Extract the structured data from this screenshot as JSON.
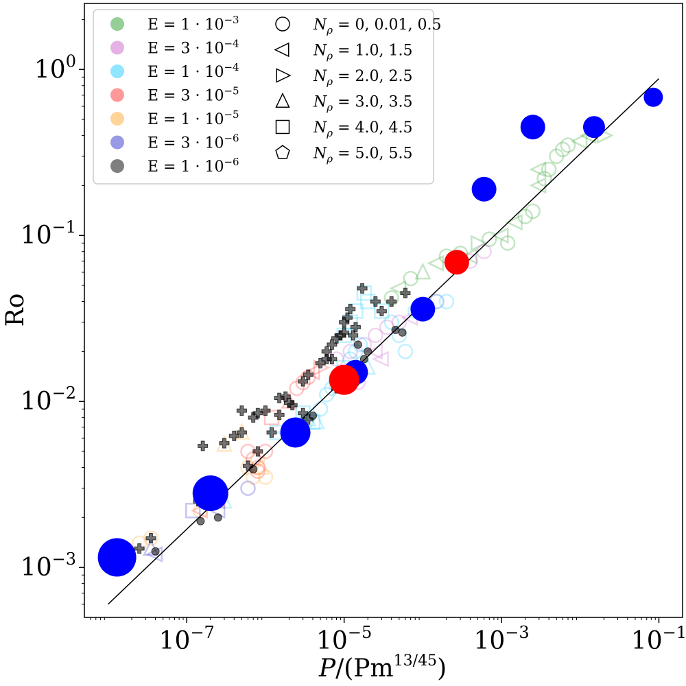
{
  "chart_data": {
    "type": "scatter",
    "xscale": "log",
    "yscale": "log",
    "xlim": [
      5e-09,
      0.2
    ],
    "ylim": [
      0.0005,
      2.5
    ],
    "xlabel": "P/(Pm^{13/45})",
    "ylabel": "Ro",
    "xticks": [
      {
        "value": 1e-07,
        "base": "10",
        "exp": "−7"
      },
      {
        "value": 1e-05,
        "base": "10",
        "exp": "−5"
      },
      {
        "value": 0.001,
        "base": "10",
        "exp": "−3"
      },
      {
        "value": 0.1,
        "base": "10",
        "exp": "−1"
      }
    ],
    "yticks": [
      {
        "value": 0.001,
        "base": "10",
        "exp": "−3"
      },
      {
        "value": 0.01,
        "base": "10",
        "exp": "−2"
      },
      {
        "value": 0.1,
        "base": "10",
        "exp": "−1"
      },
      {
        "value": 1,
        "base": "10",
        "exp": "0"
      }
    ],
    "colors": {
      "e1e3": "#2ca02c",
      "e3e4": "#cc66cc",
      "e1e4": "#22ccff",
      "e3e5": "#ff3333",
      "e1e5": "#ffaa33",
      "e3e6": "#3333cc",
      "e1e6": "#000000",
      "highlight_blue": "#0000ff",
      "highlight_red": "#ff0000",
      "fit_line": "#000000"
    },
    "legend": {
      "placement": "upper-left",
      "color_entries": [
        {
          "label": "E = 1 · 10",
          "exp": "−3",
          "color": "#2ca02c"
        },
        {
          "label": "E = 3 · 10",
          "exp": "−4",
          "color": "#cc66cc"
        },
        {
          "label": "E = 1 · 10",
          "exp": "−4",
          "color": "#22ccff"
        },
        {
          "label": "E = 3 · 10",
          "exp": "−5",
          "color": "#ff3333"
        },
        {
          "label": "E = 1 · 10",
          "exp": "−5",
          "color": "#ffaa33"
        },
        {
          "label": "E = 3 · 10",
          "exp": "−6",
          "color": "#3333cc"
        },
        {
          "label": "E = 1 · 10",
          "exp": "−6",
          "color": "#000000"
        }
      ],
      "marker_entries": [
        {
          "marker": "circle",
          "label": "= 0, 0.01, 0.5"
        },
        {
          "marker": "triangle-left",
          "label": "= 1.0, 1.5"
        },
        {
          "marker": "triangle-right",
          "label": "= 2.0, 2.5"
        },
        {
          "marker": "triangle-up",
          "label": "= 3.0, 3.5"
        },
        {
          "marker": "square",
          "label": "= 4.0, 4.5"
        },
        {
          "marker": "pentagon",
          "label": "= 5.0, 5.5"
        }
      ]
    },
    "fit_line": {
      "x": [
        1e-08,
        0.1
      ],
      "y": [
        0.0006,
        0.88
      ]
    },
    "series": [
      {
        "name": "E=1e-3 (green hollow)",
        "color": "#2ca02c",
        "points": [
          [
            4e-05,
            0.042,
            "o"
          ],
          [
            5e-05,
            0.048,
            "<"
          ],
          [
            7e-05,
            0.055,
            "o"
          ],
          [
            0.0001,
            0.06,
            "^"
          ],
          [
            0.00015,
            0.068,
            "<"
          ],
          [
            0.0002,
            0.075,
            "o"
          ],
          [
            0.0003,
            0.078,
            "o"
          ],
          [
            0.0005,
            0.09,
            ">"
          ],
          [
            0.0007,
            0.095,
            "o"
          ],
          [
            0.001,
            0.1,
            "<"
          ],
          [
            0.0015,
            0.12,
            "<"
          ],
          [
            0.002,
            0.13,
            "o"
          ],
          [
            0.0025,
            0.14,
            "o"
          ],
          [
            0.003,
            0.2,
            "<"
          ],
          [
            0.0035,
            0.22,
            "o"
          ],
          [
            0.004,
            0.25,
            "o"
          ],
          [
            0.005,
            0.3,
            "o"
          ],
          [
            0.006,
            0.33,
            "o"
          ],
          [
            0.007,
            0.35,
            "o"
          ],
          [
            0.01,
            0.37,
            "<"
          ],
          [
            0.013,
            0.4,
            "<"
          ],
          [
            0.02,
            0.4,
            ">"
          ],
          [
            0.003,
            0.25,
            "<"
          ],
          [
            0.0012,
            0.09,
            "o"
          ],
          [
            0.0004,
            0.075,
            "<"
          ]
        ]
      },
      {
        "name": "E=3e-4 (violet hollow)",
        "color": "#cc66cc",
        "points": [
          [
            8e-06,
            0.018,
            "o"
          ],
          [
            1.2e-05,
            0.02,
            "o"
          ],
          [
            1.8e-05,
            0.022,
            "o"
          ],
          [
            2.5e-05,
            0.025,
            "o"
          ],
          [
            3.5e-05,
            0.028,
            "o"
          ],
          [
            5e-05,
            0.03,
            "o"
          ],
          [
            7e-05,
            0.032,
            "<"
          ],
          [
            0.0001,
            0.035,
            "<"
          ],
          [
            0.00015,
            0.04,
            "o"
          ],
          [
            2.5e-05,
            0.02,
            "<"
          ],
          [
            0.0006,
            0.08,
            "o"
          ],
          [
            0.0004,
            0.07,
            "o"
          ],
          [
            1.5e-05,
            0.013,
            "o"
          ],
          [
            3e-05,
            0.018,
            "<"
          ]
        ]
      },
      {
        "name": "E=1e-4 (cyan hollow)",
        "color": "#22ccff",
        "points": [
          [
            3e-07,
            0.0025,
            "^"
          ],
          [
            1.4e-06,
            0.0065,
            "s"
          ],
          [
            2e-06,
            0.007,
            "o"
          ],
          [
            2.5e-06,
            0.0075,
            "<"
          ],
          [
            3e-06,
            0.0085,
            "s"
          ],
          [
            3.5e-06,
            0.0078,
            "^"
          ],
          [
            4.5e-06,
            0.0075,
            "^"
          ],
          [
            5e-06,
            0.009,
            "o"
          ],
          [
            6e-06,
            0.011,
            "o"
          ],
          [
            7e-06,
            0.012,
            "o"
          ],
          [
            8e-06,
            0.013,
            "s"
          ],
          [
            1e-05,
            0.016,
            "s"
          ],
          [
            1.2e-05,
            0.018,
            "o"
          ],
          [
            1.4e-05,
            0.02,
            "o"
          ],
          [
            1.6e-05,
            0.022,
            "o"
          ],
          [
            1e-05,
            0.025,
            "s"
          ],
          [
            1.2e-05,
            0.03,
            "s"
          ],
          [
            1.4e-05,
            0.035,
            "s"
          ],
          [
            2e-05,
            0.04,
            "s"
          ],
          [
            1.8e-05,
            0.045,
            "s"
          ],
          [
            3e-05,
            0.035,
            "s"
          ],
          [
            4e-05,
            0.03,
            "o"
          ],
          [
            5e-05,
            0.025,
            "o"
          ],
          [
            8e-05,
            0.035,
            "o"
          ],
          [
            0.00015,
            0.04,
            "o"
          ],
          [
            0.0002,
            0.04,
            "o"
          ],
          [
            6e-05,
            0.02,
            "o"
          ],
          [
            2e-05,
            0.016,
            "^"
          ],
          [
            4e-06,
            0.0075,
            "s"
          ],
          [
            1.8e-06,
            0.0065,
            "<"
          ]
        ]
      },
      {
        "name": "E=3e-5 (red hollow)",
        "color": "#ff3333",
        "points": [
          [
            2.5e-07,
            0.0025,
            "<"
          ],
          [
            6e-07,
            0.005,
            "o"
          ],
          [
            7e-07,
            0.0045,
            "o"
          ],
          [
            8e-07,
            0.004,
            "o"
          ],
          [
            1e-06,
            0.005,
            "o"
          ],
          [
            2e-06,
            0.01,
            "^"
          ],
          [
            2.5e-06,
            0.012,
            "o"
          ],
          [
            3e-06,
            0.013,
            "o"
          ],
          [
            3.5e-06,
            0.014,
            "o"
          ],
          [
            4e-06,
            0.015,
            "<"
          ],
          [
            5e-06,
            0.016,
            ">"
          ],
          [
            8e-07,
            0.0038,
            "o"
          ],
          [
            1.2e-06,
            0.008,
            "s"
          ],
          [
            1.5e-07,
            0.0022,
            "<"
          ]
        ]
      },
      {
        "name": "E=1e-5 (orange hollow)",
        "color": "#ffaa33",
        "points": [
          [
            1.6e-08,
            0.0013,
            "o"
          ],
          [
            2.5e-08,
            0.0014,
            "o"
          ],
          [
            3.5e-08,
            0.0015,
            "o"
          ],
          [
            1.5e-07,
            0.0022,
            "o"
          ],
          [
            2e-07,
            0.0025,
            "^"
          ],
          [
            3e-07,
            0.0055,
            "^"
          ],
          [
            5e-07,
            0.0065,
            "^"
          ],
          [
            6e-07,
            0.004,
            "o"
          ],
          [
            7e-07,
            0.0035,
            "o"
          ],
          [
            8e-07,
            0.0045,
            "o"
          ],
          [
            9e-07,
            0.004,
            "^"
          ],
          [
            1e-06,
            0.0035,
            "o"
          ]
        ]
      },
      {
        "name": "E=3e-6 (blue hollow)",
        "color": "#3333cc",
        "points": [
          [
            1.2e-07,
            0.0022,
            "s"
          ],
          [
            3.5e-08,
            0.0013,
            "^"
          ],
          [
            4e-08,
            0.0012,
            "<"
          ],
          [
            6e-07,
            0.003,
            "o"
          ],
          [
            2.5e-07,
            0.0022,
            "<"
          ]
        ]
      },
      {
        "name": "E=1e-6 (black filled)",
        "color": "#000000",
        "points": [
          [
            2.5e-08,
            0.0013,
            "P"
          ],
          [
            3.5e-08,
            0.0015,
            "P"
          ],
          [
            4e-08,
            0.00125,
            "o"
          ],
          [
            1.4e-07,
            0.0025,
            "P"
          ],
          [
            1.5e-07,
            0.0019,
            "o"
          ],
          [
            2.5e-07,
            0.002,
            "o"
          ],
          [
            1.6e-07,
            0.0054,
            "P"
          ],
          [
            3e-07,
            0.0056,
            "P"
          ],
          [
            4e-07,
            0.0062,
            "P"
          ],
          [
            5e-07,
            0.0065,
            "P"
          ],
          [
            6e-07,
            0.0041,
            "P"
          ],
          [
            7e-07,
            0.0039,
            "o"
          ],
          [
            8e-07,
            0.005,
            "P"
          ],
          [
            5e-07,
            0.0088,
            "P"
          ],
          [
            7e-07,
            0.008,
            "P"
          ],
          [
            8e-07,
            0.0085,
            "P"
          ],
          [
            1e-06,
            0.0088,
            "P"
          ],
          [
            1.2e-06,
            0.0065,
            "P"
          ],
          [
            1.5e-06,
            0.0083,
            "P"
          ],
          [
            1.8e-06,
            0.0107,
            "P"
          ],
          [
            2e-06,
            0.0098,
            "P"
          ],
          [
            2.2e-06,
            0.0095,
            "P"
          ],
          [
            1.5e-06,
            0.0105,
            "P"
          ],
          [
            3e-06,
            0.0085,
            "P"
          ],
          [
            3.5e-06,
            0.0078,
            "P"
          ],
          [
            4e-06,
            0.0082,
            "o"
          ],
          [
            3e-06,
            0.0132,
            "P"
          ],
          [
            3.5e-06,
            0.0145,
            "P"
          ],
          [
            5e-06,
            0.017,
            "P"
          ],
          [
            6e-06,
            0.018,
            "P"
          ],
          [
            7e-06,
            0.018,
            "P"
          ],
          [
            6e-06,
            0.02,
            "P"
          ],
          [
            7e-06,
            0.022,
            "P"
          ],
          [
            8e-06,
            0.024,
            "P"
          ],
          [
            9e-06,
            0.025,
            "P"
          ],
          [
            1e-05,
            0.03,
            "P"
          ],
          [
            1.1e-05,
            0.032,
            "P"
          ],
          [
            1.2e-05,
            0.036,
            "P"
          ],
          [
            1.3e-05,
            0.025,
            "P"
          ],
          [
            1.4e-05,
            0.028,
            "P"
          ],
          [
            1.5e-05,
            0.022,
            "o"
          ],
          [
            1.8e-05,
            0.018,
            "o"
          ],
          [
            2e-05,
            0.02,
            "o"
          ],
          [
            1.7e-05,
            0.048,
            "P"
          ],
          [
            2.5e-05,
            0.04,
            "P"
          ],
          [
            3e-05,
            0.035,
            "P"
          ],
          [
            4e-05,
            0.04,
            "P"
          ],
          [
            6e-05,
            0.045,
            "P"
          ],
          [
            8e-05,
            0.035,
            "o"
          ],
          [
            4.5e-05,
            0.027,
            "o"
          ],
          [
            5.5e-05,
            0.026,
            "o"
          ],
          [
            9e-06,
            0.014,
            "o"
          ],
          [
            1.2e-05,
            0.015,
            "o"
          ],
          [
            1.4e-05,
            0.013,
            "o"
          ],
          [
            8e-06,
            0.012,
            "P"
          ],
          [
            1e-05,
            0.026,
            "P"
          ]
        ]
      },
      {
        "name": "Highlight blue (large filled)",
        "color": "#0000ff",
        "points": [
          [
            1.3e-08,
            0.00115,
            14
          ],
          [
            2e-07,
            0.0028,
            13
          ],
          [
            2.4e-06,
            0.0065,
            11
          ],
          [
            1.4e-05,
            0.015,
            9
          ],
          [
            0.0001,
            0.036,
            9
          ],
          [
            0.0006,
            0.19,
            9
          ],
          [
            0.0025,
            0.45,
            9
          ],
          [
            0.015,
            0.45,
            8
          ],
          [
            0.085,
            0.68,
            7
          ]
        ]
      },
      {
        "name": "Highlight red (large filled)",
        "color": "#ff0000",
        "points": [
          [
            1e-05,
            0.0135,
            11
          ],
          [
            0.00027,
            0.069,
            9
          ]
        ]
      }
    ]
  }
}
